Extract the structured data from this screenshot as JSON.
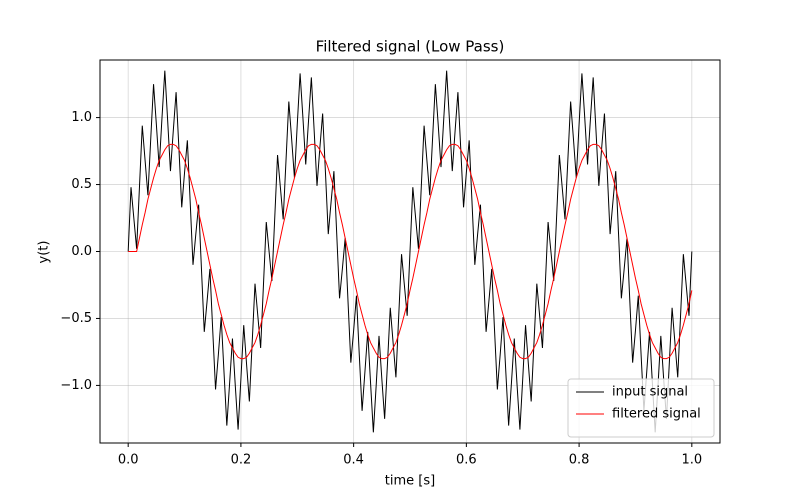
{
  "chart_data": {
    "type": "line",
    "title": "Filtered signal (Low Pass)",
    "xlabel": "time [s]",
    "ylabel": "y(t)",
    "x": [
      0,
      0.005,
      0.01,
      0.015,
      0.02,
      0.025,
      0.03,
      0.035,
      0.04,
      0.045,
      0.05,
      0.055,
      0.06,
      0.065,
      0.07,
      0.075,
      0.08,
      0.085,
      0.09,
      0.095,
      0.1,
      0.105,
      0.11,
      0.115,
      0.12,
      0.125,
      0.13,
      0.135,
      0.14,
      0.145,
      0.15,
      0.155,
      0.16,
      0.165,
      0.17,
      0.175,
      0.18,
      0.185,
      0.19,
      0.195,
      0.2,
      0.205,
      0.21,
      0.215,
      0.22,
      0.225,
      0.23,
      0.235,
      0.24,
      0.245,
      0.25,
      0.255,
      0.26,
      0.265,
      0.27,
      0.275,
      0.28,
      0.285,
      0.29,
      0.295,
      0.3,
      0.305,
      0.31,
      0.315,
      0.32,
      0.325,
      0.33,
      0.335,
      0.34,
      0.345,
      0.35,
      0.355,
      0.36,
      0.365,
      0.37,
      0.375,
      0.38,
      0.385,
      0.39,
      0.395,
      0.4,
      0.405,
      0.41,
      0.415,
      0.42,
      0.425,
      0.43,
      0.435,
      0.44,
      0.445,
      0.45,
      0.455,
      0.46,
      0.465,
      0.47,
      0.475,
      0.48,
      0.485,
      0.49,
      0.495,
      0.5,
      0.505,
      0.51,
      0.515,
      0.52,
      0.525,
      0.53,
      0.535,
      0.54,
      0.545,
      0.55,
      0.555,
      0.56,
      0.565,
      0.57,
      0.575,
      0.58,
      0.585,
      0.59,
      0.595,
      0.6,
      0.605,
      0.61,
      0.615,
      0.62,
      0.625,
      0.63,
      0.635,
      0.64,
      0.645,
      0.65,
      0.655,
      0.66,
      0.665,
      0.67,
      0.675,
      0.68,
      0.685,
      0.69,
      0.695,
      0.7,
      0.705,
      0.71,
      0.715,
      0.72,
      0.725,
      0.73,
      0.735,
      0.74,
      0.745,
      0.75,
      0.755,
      0.76,
      0.765,
      0.77,
      0.775,
      0.78,
      0.785,
      0.79,
      0.795,
      0.8,
      0.805,
      0.81,
      0.815,
      0.82,
      0.825,
      0.83,
      0.835,
      0.84,
      0.845,
      0.85,
      0.855,
      0.86,
      0.865,
      0.87,
      0.875,
      0.88,
      0.885,
      0.89,
      0.895,
      0.9,
      0.905,
      0.91,
      0.915,
      0.92,
      0.925,
      0.93,
      0.935,
      0.94,
      0.945,
      0.95,
      0.955,
      0.96,
      0.965,
      0.97,
      0.975,
      0.98,
      0.985,
      0.99,
      0.995,
      1.0
    ],
    "series": [
      {
        "name": "input signal",
        "color": "#000000",
        "values": [
          0,
          0.48,
          0.25,
          0.02,
          0.48,
          0.94,
          0.68,
          0.42,
          0.84,
          1.25,
          0.95,
          0.63,
          1.0,
          1.35,
          0.98,
          0.6,
          0.9,
          1.19,
          0.77,
          0.33,
          0.59,
          0.83,
          0.37,
          -0.1,
          0.13,
          0.35,
          -0.13,
          -0.6,
          -0.37,
          -0.13,
          -0.59,
          -1.03,
          -0.77,
          -0.49,
          -0.9,
          -1.3,
          -0.98,
          -0.65,
          -1.0,
          -1.33,
          -0.95,
          -0.55,
          -0.84,
          -1.12,
          -0.68,
          -0.24,
          -0.48,
          -0.72,
          -0.25,
          0.22,
          0,
          -0.22,
          0.25,
          0.72,
          0.48,
          0.24,
          0.68,
          1.12,
          0.84,
          0.55,
          0.95,
          1.33,
          1.0,
          0.65,
          0.98,
          1.3,
          0.9,
          0.49,
          0.77,
          1.03,
          0.59,
          0.13,
          0.37,
          0.6,
          0.13,
          -0.35,
          -0.13,
          0.1,
          -0.37,
          -0.83,
          -0.59,
          -0.33,
          -0.77,
          -1.19,
          -0.9,
          -0.6,
          -0.98,
          -1.35,
          -1.0,
          -0.63,
          -0.95,
          -1.25,
          -0.84,
          -0.42,
          -0.68,
          -0.94,
          -0.48,
          -0.02,
          -0.25,
          -0.48,
          0,
          0.48,
          0.25,
          0.02,
          0.48,
          0.94,
          0.68,
          0.42,
          0.84,
          1.25,
          0.95,
          0.63,
          1.0,
          1.35,
          0.98,
          0.6,
          0.9,
          1.19,
          0.77,
          0.33,
          0.59,
          0.83,
          0.37,
          -0.1,
          0.13,
          0.35,
          -0.13,
          -0.6,
          -0.37,
          -0.13,
          -0.59,
          -1.03,
          -0.77,
          -0.49,
          -0.9,
          -1.3,
          -0.98,
          -0.65,
          -1.0,
          -1.33,
          -0.95,
          -0.55,
          -0.84,
          -1.12,
          -0.68,
          -0.24,
          -0.48,
          -0.72,
          -0.25,
          0.22,
          0,
          -0.22,
          0.25,
          0.72,
          0.48,
          0.24,
          0.68,
          1.12,
          0.84,
          0.55,
          0.95,
          1.33,
          1.0,
          0.65,
          0.98,
          1.3,
          0.9,
          0.49,
          0.77,
          1.03,
          0.59,
          0.13,
          0.37,
          0.6,
          0.13,
          -0.35,
          -0.13,
          0.1,
          -0.37,
          -0.83,
          -0.59,
          -0.33,
          -0.77,
          -1.19,
          -0.9,
          -0.6,
          -0.98,
          -1.35,
          -1.0,
          -0.63,
          -0.95,
          -1.25,
          -0.84,
          -0.42,
          -0.68,
          -0.94,
          -0.48,
          -0.02,
          -0.25,
          -0.48,
          0
        ]
      },
      {
        "name": "filtered signal",
        "color": "#ff0000",
        "values": [
          0,
          0,
          0,
          0,
          0.1,
          0.2,
          0.29,
          0.39,
          0.47,
          0.55,
          0.62,
          0.68,
          0.72,
          0.76,
          0.79,
          0.8,
          0.8,
          0.79,
          0.76,
          0.72,
          0.68,
          0.62,
          0.55,
          0.47,
          0.39,
          0.29,
          0.2,
          0.1,
          0,
          -0.1,
          -0.2,
          -0.29,
          -0.39,
          -0.47,
          -0.55,
          -0.62,
          -0.68,
          -0.72,
          -0.76,
          -0.79,
          -0.8,
          -0.8,
          -0.79,
          -0.76,
          -0.72,
          -0.68,
          -0.62,
          -0.55,
          -0.47,
          -0.39,
          -0.29,
          -0.2,
          -0.1,
          0,
          0.1,
          0.2,
          0.29,
          0.39,
          0.47,
          0.55,
          0.62,
          0.68,
          0.72,
          0.76,
          0.79,
          0.8,
          0.8,
          0.79,
          0.76,
          0.72,
          0.68,
          0.62,
          0.55,
          0.47,
          0.39,
          0.29,
          0.2,
          0.1,
          0,
          -0.1,
          -0.2,
          -0.29,
          -0.39,
          -0.47,
          -0.55,
          -0.62,
          -0.68,
          -0.72,
          -0.76,
          -0.79,
          -0.8,
          -0.8,
          -0.79,
          -0.76,
          -0.72,
          -0.68,
          -0.62,
          -0.55,
          -0.47,
          -0.39,
          -0.29,
          -0.2,
          -0.1,
          0,
          0.1,
          0.2,
          0.29,
          0.39,
          0.47,
          0.55,
          0.62,
          0.68,
          0.72,
          0.76,
          0.79,
          0.8,
          0.8,
          0.79,
          0.76,
          0.72,
          0.68,
          0.62,
          0.55,
          0.47,
          0.39,
          0.29,
          0.2,
          0.1,
          0,
          -0.1,
          -0.2,
          -0.29,
          -0.39,
          -0.47,
          -0.55,
          -0.62,
          -0.68,
          -0.72,
          -0.76,
          -0.79,
          -0.8,
          -0.8,
          -0.79,
          -0.76,
          -0.72,
          -0.68,
          -0.62,
          -0.55,
          -0.47,
          -0.39,
          -0.29,
          -0.2,
          -0.1,
          0,
          0.1,
          0.2,
          0.29,
          0.39,
          0.47,
          0.55,
          0.62,
          0.68,
          0.72,
          0.76,
          0.79,
          0.8,
          0.8,
          0.79,
          0.76,
          0.72,
          0.68,
          0.62,
          0.55,
          0.47,
          0.39,
          0.29,
          0.2,
          0.1,
          0,
          -0.1,
          -0.2,
          -0.29,
          -0.39,
          -0.47,
          -0.55,
          -0.62,
          -0.68,
          -0.72,
          -0.76,
          -0.79,
          -0.8,
          -0.8,
          -0.79,
          -0.76,
          -0.72,
          -0.68,
          -0.62,
          -0.55,
          -0.47,
          -0.39,
          -0.29
        ]
      }
    ],
    "xlim": [
      -0.05,
      1.05
    ],
    "ylim": [
      -1.43,
      1.43
    ],
    "xticks": [
      {
        "value": 0,
        "label": "0.0"
      },
      0.2,
      0.4,
      0.6,
      0.8,
      {
        "value": 1,
        "label": "1.0"
      }
    ],
    "yticks": [
      {
        "value": -1,
        "label": "−1.0"
      },
      {
        "value": -0.5,
        "label": "−0.5"
      },
      {
        "value": 0,
        "label": "0.0"
      },
      0.5,
      {
        "value": 1,
        "label": "1.0"
      }
    ],
    "grid": true,
    "legend": "lower right"
  }
}
